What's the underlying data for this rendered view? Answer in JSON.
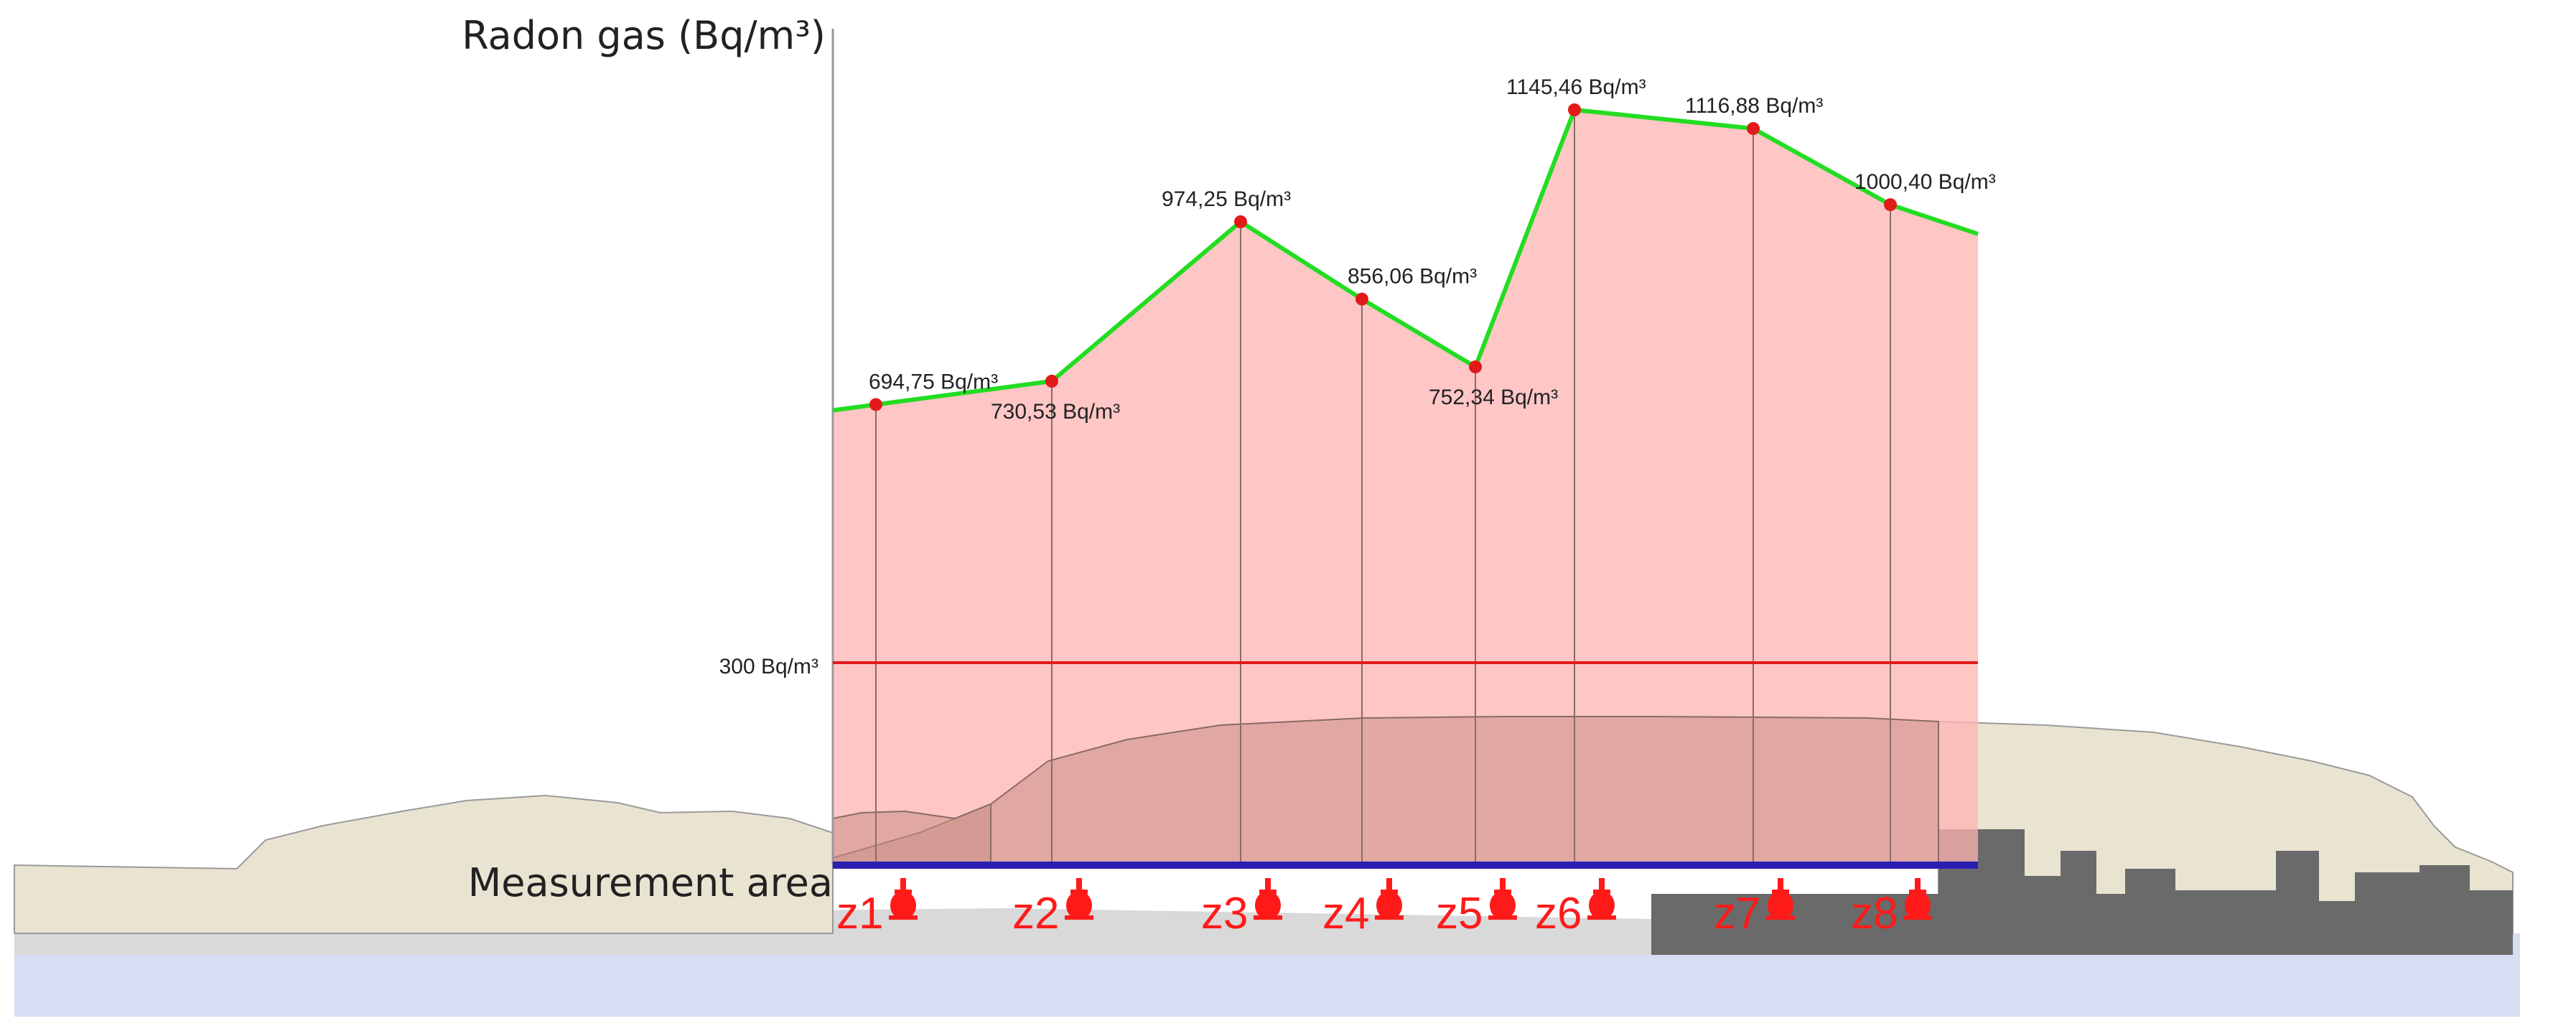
{
  "chart_data": {
    "type": "area",
    "ylabel": "Radon gas (Bq/m³)",
    "xlabel": "Measurement area",
    "ylim": [
      0,
      1300
    ],
    "grid": false,
    "legend": "none",
    "reference_line": {
      "label": "300 Bq/m³",
      "value": 300,
      "color": "#e31a1a"
    },
    "line_color": "#22dd22",
    "fill_color": "#ffb3b3",
    "point_color": "#e31a1a",
    "zone_color": "#ff1a1a",
    "points": [
      {
        "zone": "z1",
        "value": 694.75,
        "label": "694,75 Bq/m³"
      },
      {
        "zone": "z2",
        "value": 730.53,
        "label": "730,53 Bq/m³"
      },
      {
        "zone": "z3",
        "value": 974.25,
        "label": "974,25 Bq/m³"
      },
      {
        "zone": "z4",
        "value": 856.06,
        "label": "856,06 Bq/m³"
      },
      {
        "zone": "z5",
        "value": 752.34,
        "label": "752,34 Bq/m³"
      },
      {
        "zone": "z6",
        "value": 1145.46,
        "label": "1145,46 Bq/m³"
      },
      {
        "zone": "z7",
        "value": 1116.88,
        "label": "1116,88 Bq/m³"
      },
      {
        "zone": "z8",
        "value": 1000.4,
        "label": "1000,40 Bq/m³"
      }
    ]
  }
}
